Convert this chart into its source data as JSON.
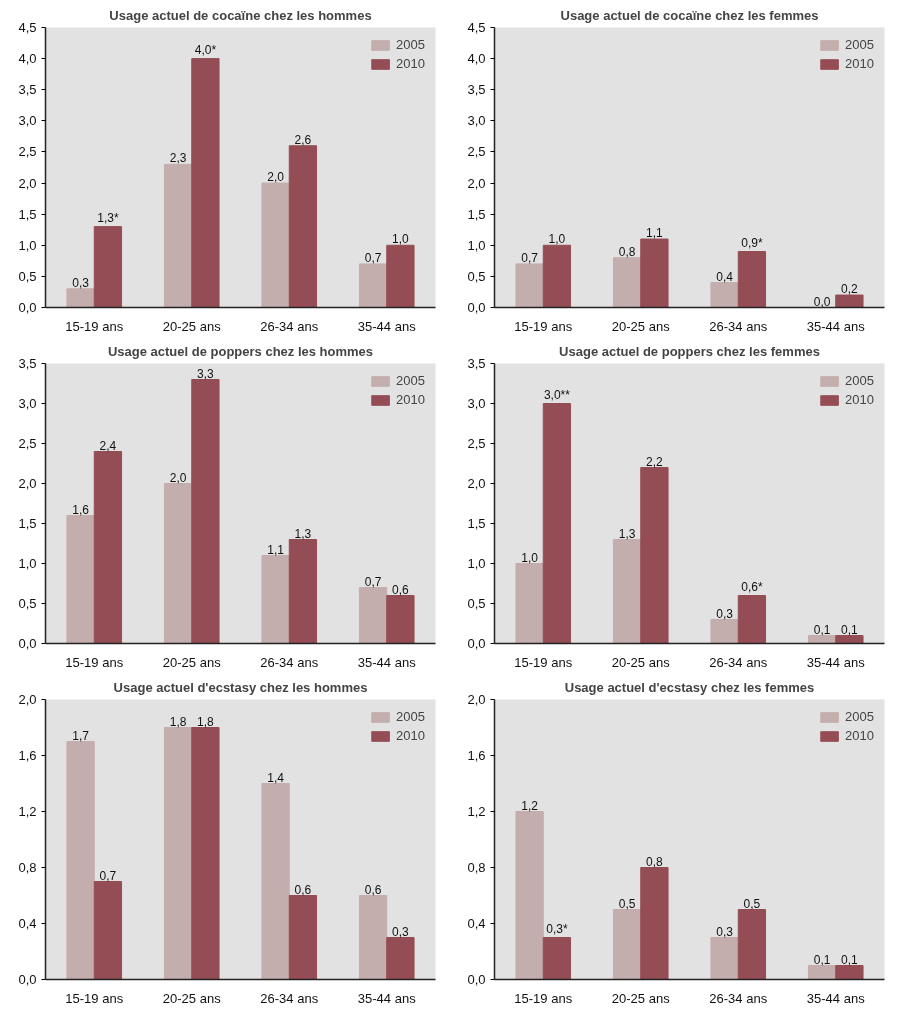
{
  "chart_data": [
    {
      "type": "bar",
      "title": "Usage actuel de cocaïne chez les hommes",
      "categories": [
        "15-19 ans",
        "20-25 ans",
        "26-34 ans",
        "35-44 ans"
      ],
      "legend": "top right",
      "ylim": [
        0,
        4.5
      ],
      "yticks": [
        {
          "value": 0,
          "label": "0,0"
        },
        {
          "value": 0.5,
          "label": "0,5"
        },
        {
          "value": 1,
          "label": "1,0"
        },
        {
          "value": 1.5,
          "label": "1,5"
        },
        {
          "value": 2,
          "label": "2,0"
        },
        {
          "value": 2.5,
          "label": "2,5"
        },
        {
          "value": 3,
          "label": "3,0"
        },
        {
          "value": 3.5,
          "label": "3,5"
        },
        {
          "value": 4,
          "label": "4,0"
        },
        {
          "value": 4.5,
          "label": "4,5"
        }
      ],
      "series": [
        {
          "name": "2005",
          "color": "#c4adad",
          "values": [
            0.3,
            2.3,
            2.0,
            0.7
          ],
          "value_labels": [
            "0,3",
            "2,3",
            "2,0",
            "0,7"
          ]
        },
        {
          "name": "2010",
          "color": "#954d55",
          "values": [
            1.3,
            4.0,
            2.6,
            1.0
          ],
          "value_labels": [
            "1,3*",
            "4,0*",
            "2,6",
            "1,0"
          ]
        }
      ]
    },
    {
      "type": "bar",
      "title": "Usage actuel de cocaïne chez les femmes",
      "categories": [
        "15-19 ans",
        "20-25 ans",
        "26-34 ans",
        "35-44 ans"
      ],
      "legend": "top right",
      "ylim": [
        0,
        4.5
      ],
      "yticks": [
        {
          "value": 0,
          "label": "0,0"
        },
        {
          "value": 0.5,
          "label": "0,5"
        },
        {
          "value": 1,
          "label": "1,0"
        },
        {
          "value": 1.5,
          "label": "1,5"
        },
        {
          "value": 2,
          "label": "2,0"
        },
        {
          "value": 2.5,
          "label": "2,5"
        },
        {
          "value": 3,
          "label": "3,0"
        },
        {
          "value": 3.5,
          "label": "3,5"
        },
        {
          "value": 4,
          "label": "4,0"
        },
        {
          "value": 4.5,
          "label": "4,5"
        }
      ],
      "series": [
        {
          "name": "2005",
          "color": "#c4adad",
          "values": [
            0.7,
            0.8,
            0.4,
            0.0
          ],
          "value_labels": [
            "0,7",
            "0,8",
            "0,4",
            "0,0"
          ]
        },
        {
          "name": "2010",
          "color": "#954d55",
          "values": [
            1.0,
            1.1,
            0.9,
            0.2
          ],
          "value_labels": [
            "1,0",
            "1,1",
            "0,9*",
            "0,2"
          ]
        }
      ]
    },
    {
      "type": "bar",
      "title": "Usage actuel de poppers chez les hommes",
      "categories": [
        "15-19 ans",
        "20-25 ans",
        "26-34 ans",
        "35-44 ans"
      ],
      "legend": "top right",
      "ylim": [
        0,
        3.5
      ],
      "yticks": [
        {
          "value": 0,
          "label": "0,0"
        },
        {
          "value": 0.5,
          "label": "0,5"
        },
        {
          "value": 1,
          "label": "1,0"
        },
        {
          "value": 1.5,
          "label": "1,5"
        },
        {
          "value": 2,
          "label": "2,0"
        },
        {
          "value": 2.5,
          "label": "2,5"
        },
        {
          "value": 3,
          "label": "3,0"
        },
        {
          "value": 3.5,
          "label": "3,5"
        }
      ],
      "series": [
        {
          "name": "2005",
          "color": "#c4adad",
          "values": [
            1.6,
            2.0,
            1.1,
            0.7
          ],
          "value_labels": [
            "1,6",
            "2,0",
            "1,1",
            "0,7"
          ]
        },
        {
          "name": "2010",
          "color": "#954d55",
          "values": [
            2.4,
            3.3,
            1.3,
            0.6
          ],
          "value_labels": [
            "2,4",
            "3,3",
            "1,3",
            "0,6"
          ]
        }
      ]
    },
    {
      "type": "bar",
      "title": "Usage actuel de poppers chez les femmes",
      "categories": [
        "15-19 ans",
        "20-25 ans",
        "26-34 ans",
        "35-44 ans"
      ],
      "legend": "top right",
      "ylim": [
        0,
        3.5
      ],
      "yticks": [
        {
          "value": 0,
          "label": "0,0"
        },
        {
          "value": 0.5,
          "label": "0,5"
        },
        {
          "value": 1,
          "label": "1,0"
        },
        {
          "value": 1.5,
          "label": "1,5"
        },
        {
          "value": 2,
          "label": "2,0"
        },
        {
          "value": 2.5,
          "label": "2,5"
        },
        {
          "value": 3,
          "label": "3,0"
        },
        {
          "value": 3.5,
          "label": "3,5"
        }
      ],
      "series": [
        {
          "name": "2005",
          "color": "#c4adad",
          "values": [
            1.0,
            1.3,
            0.3,
            0.1
          ],
          "value_labels": [
            "1,0",
            "1,3",
            "0,3",
            "0,1"
          ]
        },
        {
          "name": "2010",
          "color": "#954d55",
          "values": [
            3.0,
            2.2,
            0.6,
            0.1
          ],
          "value_labels": [
            "3,0**",
            "2,2",
            "0,6*",
            "0,1"
          ]
        }
      ]
    },
    {
      "type": "bar",
      "title": "Usage actuel d'ecstasy chez les hommes",
      "categories": [
        "15-19 ans",
        "20-25 ans",
        "26-34 ans",
        "35-44 ans"
      ],
      "legend": "top right",
      "ylim": [
        0,
        2.0
      ],
      "yticks": [
        {
          "value": 0,
          "label": "0,0"
        },
        {
          "value": 0.4,
          "label": "0,4"
        },
        {
          "value": 0.8,
          "label": "0,8"
        },
        {
          "value": 1.2,
          "label": "1,2"
        },
        {
          "value": 1.6,
          "label": "1,6"
        },
        {
          "value": 2.0,
          "label": "2,0"
        }
      ],
      "series": [
        {
          "name": "2005",
          "color": "#c4adad",
          "values": [
            1.7,
            1.8,
            1.4,
            0.6
          ],
          "value_labels": [
            "1,7",
            "1,8",
            "1,4",
            "0,6"
          ]
        },
        {
          "name": "2010",
          "color": "#954d55",
          "values": [
            0.7,
            1.8,
            0.6,
            0.3
          ],
          "value_labels": [
            "0,7",
            "1,8",
            "0,6",
            "0,3"
          ]
        }
      ]
    },
    {
      "type": "bar",
      "title": "Usage actuel d'ecstasy chez les femmes",
      "categories": [
        "15-19 ans",
        "20-25 ans",
        "26-34 ans",
        "35-44 ans"
      ],
      "legend": "top right",
      "ylim": [
        0,
        2.0
      ],
      "yticks": [
        {
          "value": 0,
          "label": "0,0"
        },
        {
          "value": 0.4,
          "label": "0,4"
        },
        {
          "value": 0.8,
          "label": "0,8"
        },
        {
          "value": 1.2,
          "label": "1,2"
        },
        {
          "value": 1.6,
          "label": "1,6"
        },
        {
          "value": 2.0,
          "label": "2,0"
        }
      ],
      "series": [
        {
          "name": "2005",
          "color": "#c4adad",
          "values": [
            1.2,
            0.5,
            0.3,
            0.1
          ],
          "value_labels": [
            "1,2",
            "0,5",
            "0,3",
            "0,1"
          ]
        },
        {
          "name": "2010",
          "color": "#954d55",
          "values": [
            0.3,
            0.8,
            0.5,
            0.1
          ],
          "value_labels": [
            "0,3*",
            "0,8",
            "0,5",
            "0,1"
          ]
        }
      ]
    }
  ]
}
